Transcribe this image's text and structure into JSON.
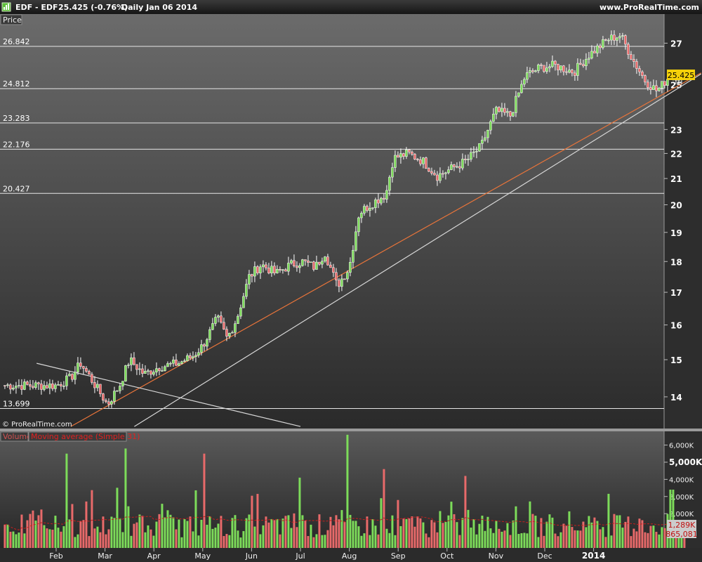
{
  "header": {
    "symbol": "EDF - EDF",
    "quote": "25.425 (-0.76%)",
    "period": "Daily  Jan 06 2014",
    "site": "www.ProRealTime.com"
  },
  "price_panel": {
    "tab_label": "Price",
    "watermark": "© ProRealTime.com",
    "last_price_tag": "25.425"
  },
  "volume_panel": {
    "tab_volume": "Volume",
    "tab_ma": "Moving average (Simple 31)",
    "tag_ma": "1,289K",
    "tag_vol": "865,081"
  },
  "colors": {
    "up": "#7ddc5a",
    "down": "#e86a6a",
    "trend_orange": "#e8743a",
    "trend_white": "#d8d8d8",
    "ma": "#c81e1e",
    "price_tag_bg": "#f5d10a"
  },
  "chart_data": [
    {
      "type": "candlestick",
      "title": "EDF - EDF",
      "ylabel": "Price",
      "y_scale": "log",
      "ylim": [
        13.2,
        28.5
      ],
      "y_ticks": [
        14,
        15,
        16,
        17,
        18,
        19,
        20,
        21,
        22,
        23,
        25,
        27
      ],
      "x_month_labels": [
        "Feb",
        "Mar",
        "Apr",
        "May",
        "Jun",
        "Jul",
        "Aug",
        "Sep",
        "Oct",
        "Nov",
        "Dec",
        "2014"
      ],
      "horizontal_levels": [
        26.842,
        24.812,
        23.283,
        22.176,
        20.427,
        13.699
      ],
      "last_price": 25.425,
      "close_anchors": [
        {
          "month_index": 0.0,
          "close": 14.3
        },
        {
          "month_index": 0.3,
          "close": 14.5
        },
        {
          "month_index": 0.5,
          "close": 14.9
        },
        {
          "month_index": 0.8,
          "close": 14.3
        },
        {
          "month_index": 1.05,
          "close": 13.8
        },
        {
          "month_index": 1.3,
          "close": 14.3
        },
        {
          "month_index": 1.5,
          "close": 15.0
        },
        {
          "month_index": 1.8,
          "close": 14.6
        },
        {
          "month_index": 2.1,
          "close": 14.8
        },
        {
          "month_index": 2.5,
          "close": 14.9
        },
        {
          "month_index": 2.8,
          "close": 15.1
        },
        {
          "month_index": 3.0,
          "close": 15.4
        },
        {
          "month_index": 3.3,
          "close": 16.2
        },
        {
          "month_index": 3.5,
          "close": 15.6
        },
        {
          "month_index": 3.7,
          "close": 16.2
        },
        {
          "month_index": 3.95,
          "close": 17.5
        },
        {
          "month_index": 4.2,
          "close": 17.9
        },
        {
          "month_index": 4.5,
          "close": 17.6
        },
        {
          "month_index": 4.8,
          "close": 17.9
        },
        {
          "month_index": 5.05,
          "close": 18.0
        },
        {
          "month_index": 5.3,
          "close": 17.8
        },
        {
          "month_index": 5.5,
          "close": 18.3
        },
        {
          "month_index": 5.75,
          "close": 17.2
        },
        {
          "month_index": 6.0,
          "close": 17.8
        },
        {
          "month_index": 6.2,
          "close": 19.7
        },
        {
          "month_index": 6.5,
          "close": 20.1
        },
        {
          "month_index": 6.75,
          "close": 20.4
        },
        {
          "month_index": 6.9,
          "close": 21.8
        },
        {
          "month_index": 7.2,
          "close": 22.0
        },
        {
          "month_index": 7.5,
          "close": 21.7
        },
        {
          "month_index": 7.8,
          "close": 21.1
        },
        {
          "month_index": 8.1,
          "close": 21.4
        },
        {
          "month_index": 8.4,
          "close": 21.7
        },
        {
          "month_index": 8.7,
          "close": 22.3
        },
        {
          "month_index": 9.0,
          "close": 23.8
        },
        {
          "month_index": 9.3,
          "close": 23.6
        },
        {
          "month_index": 9.6,
          "close": 25.4
        },
        {
          "month_index": 9.9,
          "close": 25.8
        },
        {
          "month_index": 10.2,
          "close": 25.9
        },
        {
          "month_index": 10.6,
          "close": 25.6
        },
        {
          "month_index": 10.9,
          "close": 26.4
        },
        {
          "month_index": 11.3,
          "close": 27.2
        },
        {
          "month_index": 11.55,
          "close": 27.4
        },
        {
          "month_index": 11.8,
          "close": 26.2
        },
        {
          "month_index": 12.05,
          "close": 25.2
        },
        {
          "month_index": 12.3,
          "close": 24.7
        },
        {
          "month_index": 12.55,
          "close": 25.4
        },
        {
          "month_index": 12.85,
          "close": 25.425
        }
      ],
      "trendlines": [
        {
          "color": "trend_orange",
          "from": {
            "month_index": 0.3,
            "price": 13.25
          },
          "to": {
            "month_index": 13.2,
            "price": 25.55
          }
        },
        {
          "color": "trend_white",
          "from": {
            "month_index": 1.6,
            "price": 13.25
          },
          "to": {
            "month_index": 13.2,
            "price": 25.5
          }
        },
        {
          "color": "trend_white",
          "from": {
            "month_index": -0.4,
            "price": 14.9
          },
          "to": {
            "month_index": 5.0,
            "price": 13.25
          }
        }
      ]
    },
    {
      "type": "bar",
      "title": "Volume",
      "y_ticks": [
        "6,000K",
        "5,000K",
        "4,000K",
        "3,000K",
        "2,000K"
      ],
      "ylim": [
        0,
        6800000
      ],
      "moving_average": {
        "name": "Moving average (Simple 31)",
        "period": 31,
        "last_value": "1,289K"
      },
      "last_volume": "865,081",
      "volume_spikes": [
        {
          "month_index": 0.2,
          "volume": 5500000
        },
        {
          "month_index": 1.4,
          "volume": 5800000
        },
        {
          "month_index": 3.05,
          "volume": 5500000
        },
        {
          "month_index": 5.0,
          "volume": 4100000
        },
        {
          "month_index": 5.95,
          "volume": 6600000
        },
        {
          "month_index": 6.7,
          "volume": 4600000
        },
        {
          "month_index": 8.4,
          "volume": 4200000
        },
        {
          "month_index": 12.6,
          "volume": 3400000
        }
      ]
    }
  ]
}
